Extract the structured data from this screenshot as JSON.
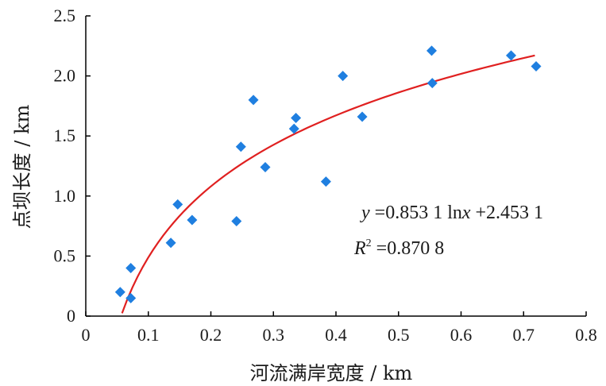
{
  "chart_data": {
    "type": "scatter",
    "xlabel": "河流满岸宽度 / km",
    "ylabel": "点坝长度 / km",
    "xlim": [
      0,
      0.8
    ],
    "ylim": [
      0,
      2.5
    ],
    "x_ticks": [
      "0",
      "0.1",
      "0.2",
      "0.3",
      "0.4",
      "0.5",
      "0.6",
      "0.7",
      "0.8"
    ],
    "y_ticks": [
      "0",
      "0.5",
      "1.0",
      "1.5",
      "2.0",
      "2.5"
    ],
    "grid": false,
    "series": [
      {
        "marker": "diamond",
        "color": "#1f7fe0",
        "points": [
          {
            "x": 0.055,
            "y": 0.2
          },
          {
            "x": 0.072,
            "y": 0.4
          },
          {
            "x": 0.072,
            "y": 0.15
          },
          {
            "x": 0.136,
            "y": 0.61
          },
          {
            "x": 0.147,
            "y": 0.93
          },
          {
            "x": 0.17,
            "y": 0.8
          },
          {
            "x": 0.241,
            "y": 0.79
          },
          {
            "x": 0.248,
            "y": 1.41
          },
          {
            "x": 0.268,
            "y": 1.8
          },
          {
            "x": 0.287,
            "y": 1.24
          },
          {
            "x": 0.333,
            "y": 1.56
          },
          {
            "x": 0.336,
            "y": 1.65
          },
          {
            "x": 0.384,
            "y": 1.12
          },
          {
            "x": 0.411,
            "y": 2.0
          },
          {
            "x": 0.442,
            "y": 1.66
          },
          {
            "x": 0.553,
            "y": 2.21
          },
          {
            "x": 0.554,
            "y": 1.94
          },
          {
            "x": 0.68,
            "y": 2.17
          },
          {
            "x": 0.72,
            "y": 2.08
          }
        ]
      },
      {
        "type": "line",
        "color": "#e02020",
        "fit": {
          "model": "log",
          "a": 0.8531,
          "b": 2.4531,
          "x_range": [
            0.058,
            0.718
          ]
        }
      }
    ],
    "annotations": [
      {
        "id": "equation",
        "parts": [
          "y",
          " =0.853 1 ln",
          "x",
          " +2.453 1"
        ]
      },
      {
        "id": "r2",
        "parts": [
          "R",
          "2",
          " =0.870 8"
        ]
      }
    ]
  }
}
